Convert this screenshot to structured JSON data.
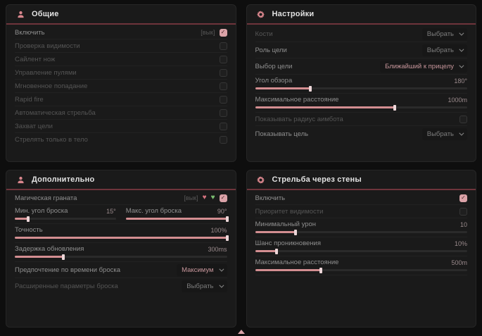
{
  "accent_colors": {
    "pink": "#d9868d",
    "header_line": "#6e343c",
    "checkbox_on": "#dba3a8",
    "slider_fill": "#d38e91"
  },
  "panels": {
    "general": {
      "title": "Общие",
      "rows": [
        {
          "label": "Включить",
          "suffix": "[вык]",
          "checked": true
        },
        {
          "label": "Проверка видимости",
          "checked": false
        },
        {
          "label": "Сайлент нож",
          "checked": false
        },
        {
          "label": "Управление пулями",
          "checked": false
        },
        {
          "label": "Мгновенное попадание",
          "checked": false
        },
        {
          "label": "Rapid fire",
          "checked": false
        },
        {
          "label": "Автоматическая стрельба",
          "checked": false
        },
        {
          "label": "Захват цели",
          "checked": false
        },
        {
          "label": "Стрелять только в тело",
          "checked": false
        }
      ]
    },
    "settings": {
      "title": "Настройки",
      "bones": {
        "label": "Кости",
        "option": "Выбрать"
      },
      "target_role": {
        "label": "Роль цели",
        "option": "Выбрать"
      },
      "target_select": {
        "label": "Выбор цели",
        "option": "Ближайший к прицелу"
      },
      "fov": {
        "label": "Угол обзора",
        "value": "180°",
        "fill": 26
      },
      "max_distance": {
        "label": "Максимальное расстояние",
        "value": "1000m",
        "fill": 66
      },
      "show_radius": {
        "label": "Показывать радиус аимбота",
        "checked": false
      },
      "show_target": {
        "label": "Показывать цель",
        "option": "Выбрать"
      }
    },
    "additional": {
      "title": "Дополнительно",
      "magic_grenade": {
        "label": "Магическая граната",
        "suffix": "[вык]",
        "checked": true
      },
      "min_angle": {
        "label": "Мин. угол броска",
        "value": "15°",
        "fill": 13
      },
      "max_angle": {
        "label": "Макс. угол броска",
        "value": "90°",
        "fill": 100
      },
      "accuracy": {
        "label": "Точность",
        "value": "100%",
        "fill": 100
      },
      "update_delay": {
        "label": "Задержка обновления",
        "value": "300ms",
        "fill": 23
      },
      "throw_time_pref": {
        "label": "Предпочтение по времени броска",
        "option": "Максимум"
      },
      "advanced_throw": {
        "label": "Расширенные параметры броска",
        "option": "Выбрать"
      }
    },
    "walls": {
      "title": "Стрельба через стены",
      "enable": {
        "label": "Включить",
        "checked": true
      },
      "visibility_priority": {
        "label": "Приоритет видимости",
        "checked": false
      },
      "min_damage": {
        "label": "Минимальный урон",
        "value": "10",
        "fill": 19
      },
      "penetration_chance": {
        "label": "Шанс проникновения",
        "value": "10%",
        "fill": 10
      },
      "max_distance": {
        "label": "Максимальное расстояние",
        "value": "500m",
        "fill": 31
      }
    }
  }
}
